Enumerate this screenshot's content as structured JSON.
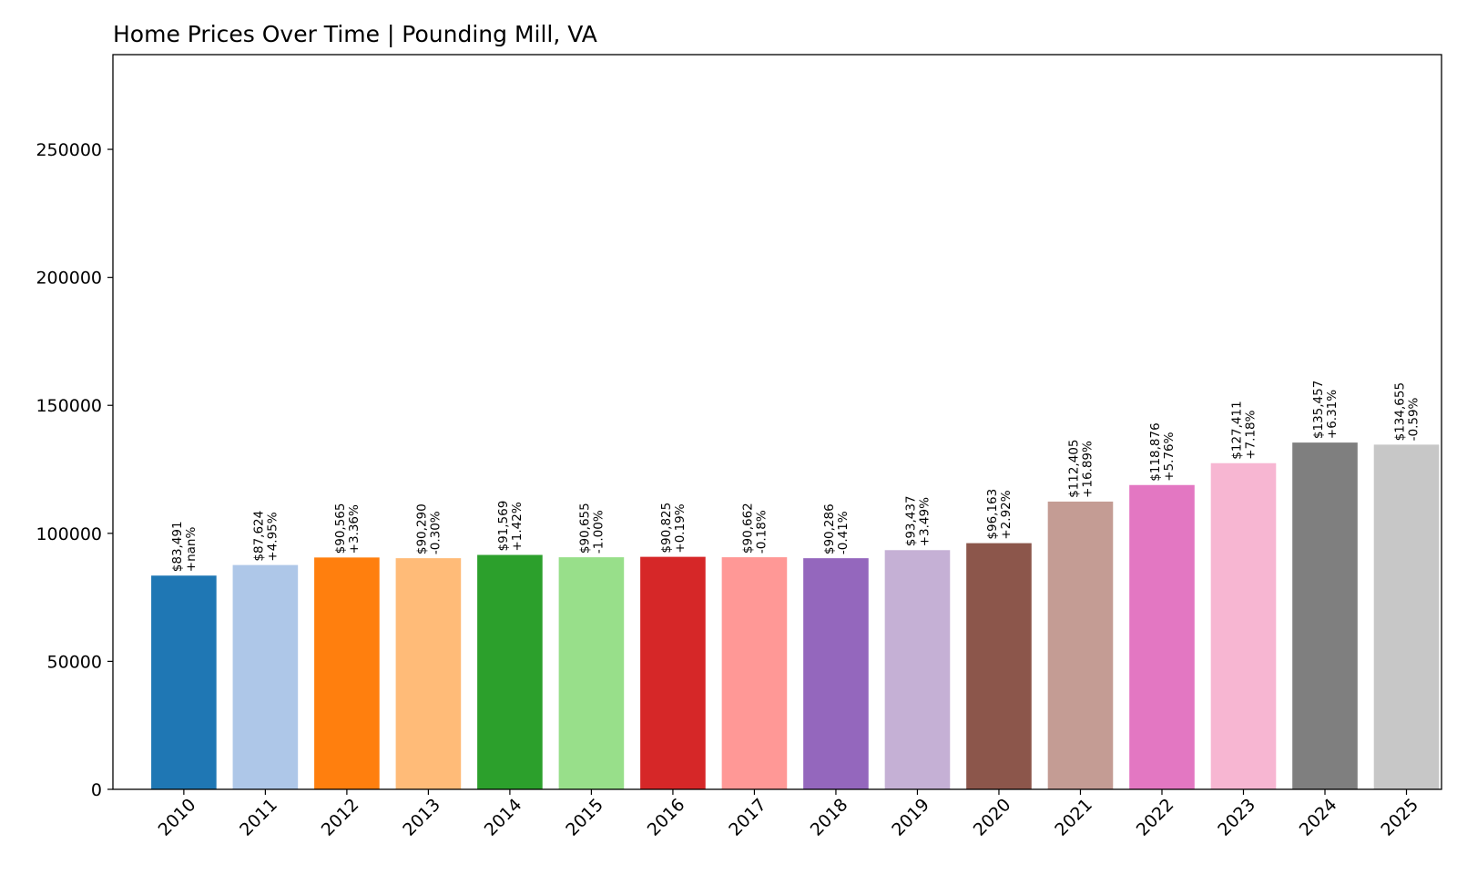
{
  "chart_data": {
    "type": "bar",
    "title": "Home Prices Over Time | Pounding Mill, VA",
    "xlabel": "",
    "ylabel": "",
    "ylim": [
      0,
      287000
    ],
    "yticks": [
      0,
      50000,
      100000,
      150000,
      200000,
      250000
    ],
    "categories": [
      "2010",
      "2011",
      "2012",
      "2013",
      "2014",
      "2015",
      "2016",
      "2017",
      "2018",
      "2019",
      "2020",
      "2021",
      "2022",
      "2023",
      "2024",
      "2025"
    ],
    "values": [
      83491,
      87624,
      90565,
      90290,
      91569,
      90655,
      90825,
      90662,
      90286,
      93437,
      96163,
      112405,
      118876,
      127411,
      135457,
      134655
    ],
    "value_labels": [
      "$83,491",
      "$87,624",
      "$90,565",
      "$90,290",
      "$91,569",
      "$90,655",
      "$90,825",
      "$90,662",
      "$90,286",
      "$93,437",
      "$96,163",
      "$112,405",
      "$118,876",
      "$127,411",
      "$135,457",
      "$134,655"
    ],
    "change_labels": [
      "+nan%",
      "+4.95%",
      "+3.36%",
      "-0.30%",
      "+1.42%",
      "-1.00%",
      "+0.19%",
      "-0.18%",
      "-0.41%",
      "+3.49%",
      "+2.92%",
      "+16.89%",
      "+5.76%",
      "+7.18%",
      "+6.31%",
      "-0.59%"
    ],
    "colors": [
      "#1f77b4",
      "#aec7e8",
      "#ff7f0e",
      "#ffbb78",
      "#2ca02c",
      "#98df8a",
      "#d62728",
      "#ff9896",
      "#9467bd",
      "#c5b0d5",
      "#8c564b",
      "#c49c94",
      "#e377c2",
      "#f7b6d2",
      "#7f7f7f",
      "#c7c7c7"
    ],
    "grid": false,
    "legend": "none"
  }
}
